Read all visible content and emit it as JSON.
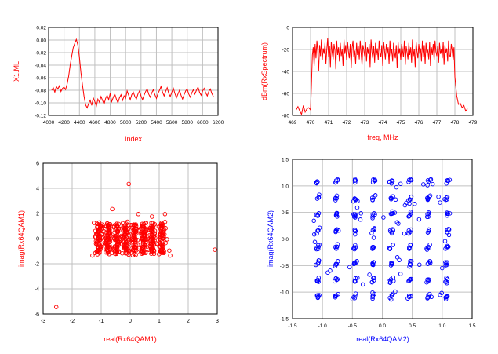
{
  "colors": {
    "red": "#ff0000",
    "blue": "#0000ff",
    "grid": "#c0c0c0",
    "axis": "#000000"
  },
  "chart_data": [
    {
      "id": "ml",
      "type": "line",
      "xlabel": "Index",
      "ylabel": "X1.ML",
      "color": "#ff0000",
      "xlim": [
        4000,
        6200
      ],
      "ylim": [
        -0.12,
        0.02
      ],
      "xticks": [
        4000,
        4200,
        4400,
        4600,
        4800,
        5000,
        5200,
        5400,
        5600,
        5800,
        6000,
        6200
      ],
      "xtick_labels": [
        "4000",
        "4200",
        "4400",
        "4600",
        "4800",
        "5000",
        "5200",
        "5400",
        "5600",
        "5800",
        "6000",
        "6200"
      ],
      "yticks": [
        -0.12,
        -0.1,
        -0.08,
        -0.06,
        -0.04,
        -0.02,
        0.0,
        0.02
      ],
      "ytick_labels": [
        "-0.12",
        "-0.10",
        "-0.08",
        "-0.06",
        "-0.04",
        "-0.02",
        "0.00",
        "0.02"
      ],
      "grid": true,
      "x": [
        4040,
        4060,
        4080,
        4100,
        4120,
        4140,
        4160,
        4180,
        4200,
        4220,
        4240,
        4260,
        4280,
        4300,
        4320,
        4340,
        4360,
        4380,
        4400,
        4420,
        4440,
        4460,
        4480,
        4500,
        4520,
        4540,
        4560,
        4580,
        4600,
        4620,
        4640,
        4660,
        4680,
        4700,
        4720,
        4740,
        4760,
        4780,
        4800,
        4820,
        4840,
        4860,
        4880,
        4900,
        4920,
        4940,
        4960,
        4980,
        5000,
        5020,
        5040,
        5060,
        5080,
        5100,
        5120,
        5140,
        5160,
        5180,
        5200,
        5220,
        5240,
        5260,
        5280,
        5300,
        5320,
        5340,
        5360,
        5380,
        5400,
        5420,
        5440,
        5460,
        5480,
        5500,
        5520,
        5540,
        5560,
        5580,
        5600,
        5620,
        5640,
        5660,
        5680,
        5700,
        5720,
        5740,
        5760,
        5780,
        5800,
        5820,
        5840,
        5860,
        5880,
        5900,
        5920,
        5940,
        5960,
        5980,
        6000,
        6020,
        6040,
        6060,
        6080,
        6100,
        6120,
        6140
      ],
      "values": [
        -0.08,
        -0.076,
        -0.083,
        -0.074,
        -0.078,
        -0.073,
        -0.082,
        -0.077,
        -0.075,
        -0.079,
        -0.07,
        -0.058,
        -0.04,
        -0.025,
        -0.012,
        -0.005,
        0.001,
        -0.008,
        -0.028,
        -0.052,
        -0.072,
        -0.09,
        -0.103,
        -0.108,
        -0.101,
        -0.096,
        -0.104,
        -0.092,
        -0.098,
        -0.105,
        -0.094,
        -0.099,
        -0.09,
        -0.096,
        -0.102,
        -0.093,
        -0.088,
        -0.095,
        -0.085,
        -0.098,
        -0.091,
        -0.086,
        -0.094,
        -0.1,
        -0.092,
        -0.087,
        -0.096,
        -0.089,
        -0.093,
        -0.081,
        -0.088,
        -0.095,
        -0.087,
        -0.083,
        -0.09,
        -0.094,
        -0.086,
        -0.081,
        -0.089,
        -0.095,
        -0.088,
        -0.082,
        -0.078,
        -0.086,
        -0.091,
        -0.084,
        -0.079,
        -0.087,
        -0.093,
        -0.085,
        -0.08,
        -0.074,
        -0.083,
        -0.089,
        -0.082,
        -0.076,
        -0.085,
        -0.09,
        -0.083,
        -0.077,
        -0.085,
        -0.092,
        -0.086,
        -0.08,
        -0.088,
        -0.094,
        -0.087,
        -0.081,
        -0.078,
        -0.086,
        -0.091,
        -0.084,
        -0.079,
        -0.086,
        -0.08,
        -0.075,
        -0.083,
        -0.088,
        -0.081,
        -0.077,
        -0.084,
        -0.089,
        -0.082,
        -0.078,
        -0.085,
        -0.09
      ]
    },
    {
      "id": "spectrum",
      "type": "line",
      "xlabel": "freq, MHz",
      "ylabel": "dBm(RxSpectrum)",
      "color": "#ff0000",
      "xlim": [
        469,
        479
      ],
      "ylim": [
        -80,
        0
      ],
      "xticks": [
        469,
        470,
        471,
        472,
        473,
        474,
        475,
        476,
        477,
        478,
        479
      ],
      "xtick_labels": [
        "469",
        "470",
        "471",
        "472",
        "473",
        "474",
        "475",
        "476",
        "477",
        "478",
        "479"
      ],
      "yticks": [
        -80,
        -60,
        -40,
        -20,
        0
      ],
      "ytick_labels": [
        "-80",
        "-60",
        "-40",
        "-20",
        "0"
      ],
      "grid": true,
      "x": [
        469.2,
        469.3,
        469.4,
        469.5,
        469.6,
        469.7,
        469.8,
        469.9,
        470.0,
        470.05,
        470.1,
        470.15,
        470.2,
        470.25,
        470.3,
        470.35,
        470.4,
        470.45,
        470.5,
        470.55,
        470.6,
        470.65,
        470.7,
        470.75,
        470.8,
        470.85,
        470.9,
        470.95,
        471.0,
        471.05,
        471.1,
        471.15,
        471.2,
        471.25,
        471.3,
        471.35,
        471.4,
        471.45,
        471.5,
        471.55,
        471.6,
        471.65,
        471.7,
        471.75,
        471.8,
        471.85,
        471.9,
        471.95,
        472.0,
        472.05,
        472.1,
        472.15,
        472.2,
        472.25,
        472.3,
        472.35,
        472.4,
        472.45,
        472.5,
        472.55,
        472.6,
        472.65,
        472.7,
        472.75,
        472.8,
        472.85,
        472.9,
        472.95,
        473.0,
        473.05,
        473.1,
        473.15,
        473.2,
        473.25,
        473.3,
        473.35,
        473.4,
        473.45,
        473.5,
        473.55,
        473.6,
        473.65,
        473.7,
        473.75,
        473.8,
        473.85,
        473.9,
        473.95,
        474.0,
        474.05,
        474.1,
        474.15,
        474.2,
        474.25,
        474.3,
        474.35,
        474.4,
        474.45,
        474.5,
        474.55,
        474.6,
        474.65,
        474.7,
        474.75,
        474.8,
        474.85,
        474.9,
        474.95,
        475.0,
        475.05,
        475.1,
        475.15,
        475.2,
        475.25,
        475.3,
        475.35,
        475.4,
        475.45,
        475.5,
        475.55,
        475.6,
        475.65,
        475.7,
        475.75,
        475.8,
        475.85,
        475.9,
        475.95,
        476.0,
        476.05,
        476.1,
        476.15,
        476.2,
        476.25,
        476.3,
        476.35,
        476.4,
        476.45,
        476.5,
        476.55,
        476.6,
        476.65,
        476.7,
        476.75,
        476.8,
        476.85,
        476.9,
        476.95,
        477.0,
        477.05,
        477.1,
        477.15,
        477.2,
        477.25,
        477.3,
        477.35,
        477.4,
        477.45,
        477.5,
        477.55,
        477.6,
        477.65,
        477.7,
        477.75,
        477.8,
        477.85,
        477.9,
        477.95,
        478.0,
        478.1,
        478.2,
        478.3,
        478.4,
        478.5,
        478.6,
        478.7
      ],
      "values": [
        -75,
        -72,
        -76,
        -79,
        -71,
        -77,
        -74,
        -73,
        -75,
        -50,
        -25,
        -18,
        -35,
        -15,
        -28,
        -12,
        -22,
        -40,
        -16,
        -26,
        -11,
        -30,
        -19,
        -24,
        -14,
        -33,
        -20,
        -10,
        -27,
        -17,
        -36,
        -13,
        -23,
        -29,
        -15,
        -21,
        -38,
        -12,
        -25,
        -18,
        -31,
        -14,
        -26,
        -20,
        -35,
        -11,
        -24,
        -16,
        -30,
        -13,
        -22,
        -28,
        -15,
        -37,
        -19,
        -12,
        -27,
        -21,
        -33,
        -14,
        -25,
        -17,
        -29,
        -12,
        -23,
        -34,
        -16,
        -20,
        -26,
        -13,
        -31,
        -18,
        -24,
        -15,
        -36,
        -11,
        -22,
        -28,
        -17,
        -32,
        -14,
        -25,
        -19,
        -30,
        -12,
        -23,
        -27,
        -16,
        -35,
        -13,
        -21,
        -29,
        -15,
        -24,
        -18,
        -33,
        -12,
        -26,
        -20,
        -31,
        -14,
        -22,
        -28,
        -16,
        -37,
        -13,
        -24,
        -19,
        -30,
        -15,
        -21,
        -27,
        -12,
        -34,
        -17,
        -23,
        -29,
        -14,
        -25,
        -18,
        -32,
        -11,
        -26,
        -20,
        -36,
        -13,
        -22,
        -28,
        -15,
        -24,
        -19,
        -31,
        -12,
        -27,
        -16,
        -33,
        -14,
        -23,
        -21,
        -29,
        -13,
        -35,
        -18,
        -25,
        -15,
        -30,
        -12,
        -22,
        -26,
        -17,
        -32,
        -14,
        -24,
        -20,
        -28,
        -13,
        -34,
        -16,
        -23,
        -19,
        -31,
        -12,
        -25,
        -27,
        -15,
        -21,
        -30,
        -18,
        -45,
        -62,
        -70,
        -69,
        -73,
        -71,
        -76,
        -74
      ]
    },
    {
      "id": "qam1",
      "type": "scatter",
      "xlabel": "real(Rx64QAM1)",
      "ylabel": "imag(Rx64QAM1)",
      "color": "#ff0000",
      "xlim": [
        -3,
        3
      ],
      "ylim": [
        -6,
        6
      ],
      "xticks": [
        -3,
        -2,
        -1,
        0,
        1,
        2,
        3
      ],
      "xtick_labels": [
        "-3",
        "-2",
        "-1",
        "0",
        "1",
        "2",
        "3"
      ],
      "yticks": [
        -6,
        -4,
        -2,
        0,
        2,
        4,
        6
      ],
      "ytick_labels": [
        "-6",
        "-4",
        "-2",
        "0",
        "2",
        "4",
        "6"
      ],
      "grid": true,
      "cluster_columns": [
        -1.08,
        -0.77,
        -0.46,
        -0.15,
        0.15,
        0.46,
        0.77,
        1.08
      ],
      "cluster_rows": [
        -1.08,
        -0.77,
        -0.46,
        -0.15,
        0.15,
        0.46,
        0.77,
        1.08
      ],
      "outliers": [
        [
          -2.55,
          -5.45
        ],
        [
          2.92,
          -0.88
        ],
        [
          -0.05,
          4.35
        ],
        [
          -0.62,
          2.35
        ],
        [
          0.28,
          1.95
        ],
        [
          0.75,
          1.75
        ],
        [
          1.2,
          1.95
        ],
        [
          -1.3,
          -1.35
        ],
        [
          1.38,
          -1.35
        ],
        [
          -1.25,
          1.25
        ],
        [
          1.35,
          -0.95
        ]
      ]
    },
    {
      "id": "qam2",
      "type": "scatter",
      "xlabel": "real(Rx64QAM2)",
      "ylabel": "imag(Rx64QAM2)",
      "color": "#0000ff",
      "xlim": [
        -1.5,
        1.5
      ],
      "ylim": [
        -1.5,
        1.5
      ],
      "xticks": [
        -1.5,
        -1.0,
        -0.5,
        0.0,
        0.5,
        1.0,
        1.5
      ],
      "xtick_labels": [
        "-1.5",
        "-1.0",
        "-0.5",
        "0.0",
        "0.5",
        "1.0",
        "1.5"
      ],
      "yticks": [
        -1.5,
        -1.0,
        -0.5,
        0.0,
        0.5,
        1.0,
        1.5
      ],
      "ytick_labels": [
        "-1.5",
        "-1.0",
        "-0.5",
        "0.0",
        "0.5",
        "1.0",
        "1.5"
      ],
      "grid": true,
      "cluster_columns": [
        -1.08,
        -0.77,
        -0.46,
        -0.15,
        0.15,
        0.46,
        0.77,
        1.08
      ],
      "cluster_rows": [
        -1.08,
        -0.77,
        -0.46,
        -0.15,
        0.15,
        0.46,
        0.77,
        1.08
      ]
    }
  ]
}
